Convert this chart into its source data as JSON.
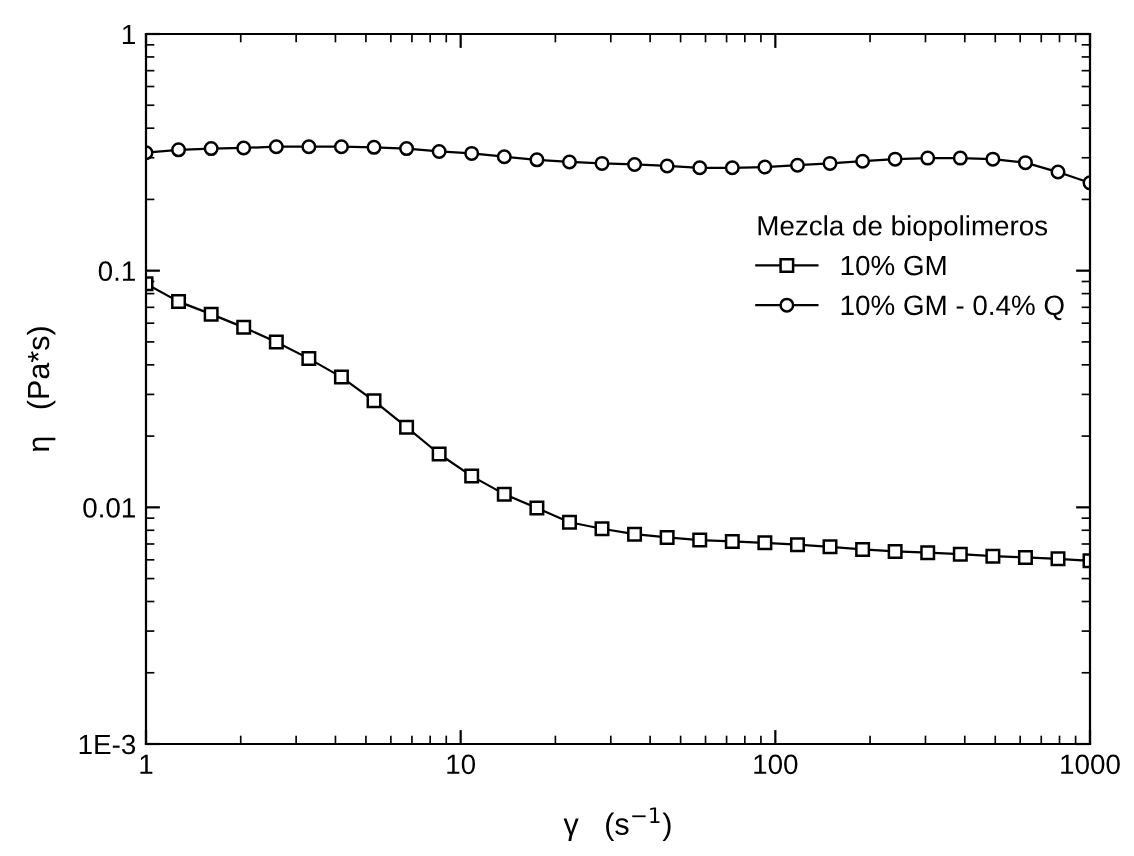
{
  "chart_data": {
    "type": "line",
    "xlabel": "γ   (s$^{−1}$)",
    "ylabel": "η   (Pa*s)",
    "legend_title": "Mezcla de biopolimeros",
    "log": "xy",
    "grid": false,
    "legend": "right",
    "line_style": "solid",
    "x": [
      1,
      1.269,
      1.611,
      2.044,
      2.595,
      3.293,
      4.179,
      5.304,
      6.732,
      8.543,
      10.84,
      13.76,
      17.47,
      22.17,
      28.13,
      35.7,
      45.31,
      57.51,
      72.99,
      92.63,
      117.6,
      149.2,
      189.4,
      240.3,
      305,
      387.1,
      491.3,
      623.5,
      791.3,
      1000
    ],
    "xlim": [
      1,
      1000
    ],
    "xticks": [
      1,
      10,
      100,
      1000
    ],
    "ylim": [
      0.001,
      1
    ],
    "yticks": [
      {
        "value": 0.001,
        "label": "1E-3"
      },
      0.01,
      0.1,
      1
    ],
    "series": [
      {
        "name": "10% GM",
        "color": "#000000",
        "marker": "square",
        "values": [
          0.088,
          0.074,
          0.0655,
          0.0576,
          0.05,
          0.0425,
          0.0355,
          0.0282,
          0.0218,
          0.0168,
          0.01355,
          0.01137,
          0.00993,
          0.00865,
          0.00812,
          0.0077,
          0.00746,
          0.00727,
          0.00718,
          0.00708,
          0.00695,
          0.00681,
          0.00664,
          0.00651,
          0.00643,
          0.00634,
          0.00622,
          0.00614,
          0.00606,
          0.00594
        ]
      },
      {
        "name": "10% GM - 0.4% Q",
        "color": "#000000",
        "marker": "circle",
        "values": [
          0.315,
          0.324,
          0.328,
          0.33,
          0.334,
          0.334,
          0.334,
          0.332,
          0.328,
          0.319,
          0.313,
          0.303,
          0.294,
          0.288,
          0.284,
          0.281,
          0.277,
          0.272,
          0.272,
          0.274,
          0.279,
          0.284,
          0.29,
          0.296,
          0.299,
          0.299,
          0.296,
          0.286,
          0.261,
          0.235
        ]
      }
    ]
  }
}
